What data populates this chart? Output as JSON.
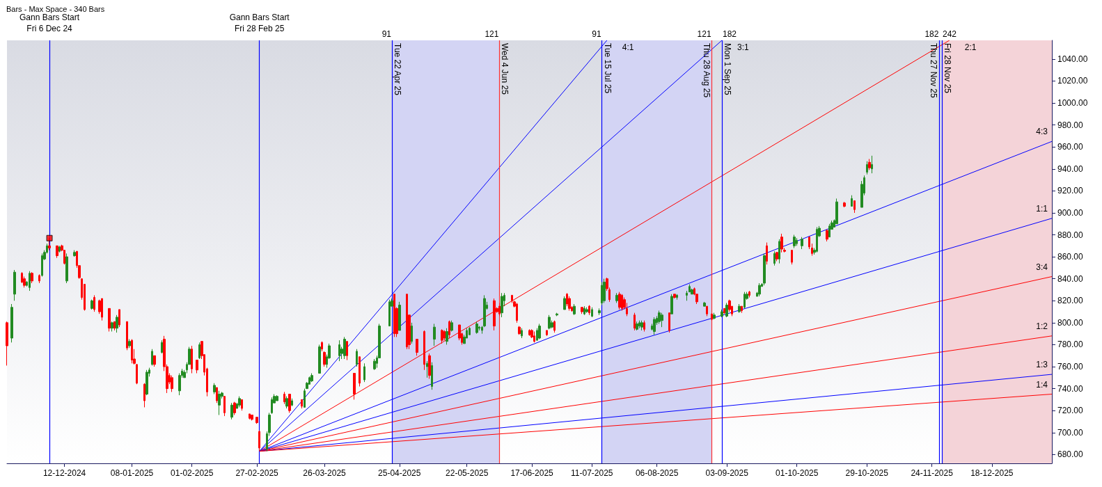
{
  "chart_data": {
    "type": "candlestick",
    "title": "Bars - Max Space - 340 Bars",
    "xlim": [
      "2024-11-19",
      "2026-01-11"
    ],
    "xticks": [
      {
        "value": "2024-12-12",
        "label": "12-12-2024"
      },
      {
        "value": "2025-01-08",
        "label": "08-01-2025"
      },
      {
        "value": "2025-02-01",
        "label": "01-02-2025"
      },
      {
        "value": "2025-02-27",
        "label": "27-02-2025"
      },
      {
        "value": "2025-03-26",
        "label": "26-03-2025"
      },
      {
        "value": "2025-04-25",
        "label": "25-04-2025"
      },
      {
        "value": "2025-05-22",
        "label": "22-05-2025"
      },
      {
        "value": "2025-06-17",
        "label": "17-06-2025"
      },
      {
        "value": "2025-07-11",
        "label": "11-07-2025"
      },
      {
        "value": "2025-08-06",
        "label": "06-08-2025"
      },
      {
        "value": "2025-09-03",
        "label": "03-09-2025"
      },
      {
        "value": "2025-10-01",
        "label": "01-10-2025"
      },
      {
        "value": "2025-10-29",
        "label": "29-10-2025"
      },
      {
        "value": "2025-11-24",
        "label": "24-11-2025"
      },
      {
        "value": "2025-12-18",
        "label": "18-12-2025"
      }
    ],
    "ylim": [
      672,
      1057
    ],
    "yticks": [
      {
        "value": 680,
        "label": "680.00"
      },
      {
        "value": 700,
        "label": "700.00"
      },
      {
        "value": 720,
        "label": "720.00"
      },
      {
        "value": 740,
        "label": "740.00"
      },
      {
        "value": 760,
        "label": "760.00"
      },
      {
        "value": 780,
        "label": "780.00"
      },
      {
        "value": 800,
        "label": "800.00"
      },
      {
        "value": 820,
        "label": "820.00"
      },
      {
        "value": 840,
        "label": "840.00"
      },
      {
        "value": 860,
        "label": "860.00"
      },
      {
        "value": 880,
        "label": "880.00"
      },
      {
        "value": 900,
        "label": "900.00"
      },
      {
        "value": 920,
        "label": "920.00"
      },
      {
        "value": 940,
        "label": "940.00"
      },
      {
        "value": 960,
        "label": "960.00"
      },
      {
        "value": 980,
        "label": "980.00"
      },
      {
        "value": 1000,
        "label": "1000.00"
      },
      {
        "value": 1020,
        "label": "1020.00"
      },
      {
        "value": 1040,
        "label": "1040.00"
      }
    ],
    "series": [
      {
        "type": "candlestick",
        "x": [
          "2024-11-19",
          "2024-11-21",
          "2024-11-22",
          "2024-11-25",
          "2024-11-26",
          "2024-11-27",
          "2024-11-28",
          "2024-11-29",
          "2024-12-02",
          "2024-12-03",
          "2024-12-04",
          "2024-12-05",
          "2024-12-06",
          "2024-12-09",
          "2024-12-10",
          "2024-12-11",
          "2024-12-12",
          "2024-12-13",
          "2024-12-16",
          "2024-12-17",
          "2024-12-18",
          "2024-12-19",
          "2024-12-20",
          "2024-12-23",
          "2024-12-24",
          "2024-12-26",
          "2024-12-27",
          "2024-12-30",
          "2024-12-31",
          "2025-01-01",
          "2025-01-02",
          "2025-01-03",
          "2025-01-06",
          "2025-01-07",
          "2025-01-08",
          "2025-01-09",
          "2025-01-10",
          "2025-01-13",
          "2025-01-14",
          "2025-01-15",
          "2025-01-16",
          "2025-01-17",
          "2025-01-20",
          "2025-01-21",
          "2025-01-22",
          "2025-01-23",
          "2025-01-24",
          "2025-01-27",
          "2025-01-28",
          "2025-01-29",
          "2025-01-30",
          "2025-01-31",
          "2025-02-01",
          "2025-02-03",
          "2025-02-04",
          "2025-02-05",
          "2025-02-06",
          "2025-02-07",
          "2025-02-10",
          "2025-02-11",
          "2025-02-12",
          "2025-02-13",
          "2025-02-14",
          "2025-02-17",
          "2025-02-18",
          "2025-02-19",
          "2025-02-20",
          "2025-02-21",
          "2025-02-24",
          "2025-02-25",
          "2025-02-27",
          "2025-02-28",
          "2025-03-03",
          "2025-03-04",
          "2025-03-05",
          "2025-03-06",
          "2025-03-07",
          "2025-03-10",
          "2025-03-11",
          "2025-03-12",
          "2025-03-13",
          "2025-03-17",
          "2025-03-18",
          "2025-03-19",
          "2025-03-20",
          "2025-03-21",
          "2025-03-24",
          "2025-03-25",
          "2025-03-26",
          "2025-03-27",
          "2025-03-28",
          "2025-04-01",
          "2025-04-02",
          "2025-04-03",
          "2025-04-04",
          "2025-04-07",
          "2025-04-08",
          "2025-04-09",
          "2025-04-11",
          "2025-04-15",
          "2025-04-16",
          "2025-04-17",
          "2025-04-21",
          "2025-04-22",
          "2025-04-23",
          "2025-04-24",
          "2025-04-25",
          "2025-04-28",
          "2025-04-29",
          "2025-04-30",
          "2025-05-02",
          "2025-05-05",
          "2025-05-06",
          "2025-05-07",
          "2025-05-08",
          "2025-05-09",
          "2025-05-12",
          "2025-05-13",
          "2025-05-14",
          "2025-05-15",
          "2025-05-16",
          "2025-05-19",
          "2025-05-20",
          "2025-05-21",
          "2025-05-22",
          "2025-05-23",
          "2025-05-26",
          "2025-05-27",
          "2025-05-28",
          "2025-05-29",
          "2025-05-30",
          "2025-06-02",
          "2025-06-03",
          "2025-06-04",
          "2025-06-05",
          "2025-06-06",
          "2025-06-09",
          "2025-06-10",
          "2025-06-11",
          "2025-06-12",
          "2025-06-13",
          "2025-06-16",
          "2025-06-17",
          "2025-06-18",
          "2025-06-19",
          "2025-06-20",
          "2025-06-23",
          "2025-06-24",
          "2025-06-25",
          "2025-06-26",
          "2025-06-27",
          "2025-06-30",
          "2025-07-01",
          "2025-07-02",
          "2025-07-03",
          "2025-07-04",
          "2025-07-07",
          "2025-07-08",
          "2025-07-09",
          "2025-07-10",
          "2025-07-11",
          "2025-07-14",
          "2025-07-15",
          "2025-07-16",
          "2025-07-17",
          "2025-07-18",
          "2025-07-21",
          "2025-07-22",
          "2025-07-23",
          "2025-07-24",
          "2025-07-25",
          "2025-07-28",
          "2025-07-29",
          "2025-07-30",
          "2025-07-31",
          "2025-08-01",
          "2025-08-04",
          "2025-08-05",
          "2025-08-06",
          "2025-08-07",
          "2025-08-08",
          "2025-08-11",
          "2025-08-12",
          "2025-08-13",
          "2025-08-14",
          "2025-08-18",
          "2025-08-19",
          "2025-08-20",
          "2025-08-21",
          "2025-08-22",
          "2025-08-25",
          "2025-08-26",
          "2025-08-28",
          "2025-08-29",
          "2025-09-01",
          "2025-09-02",
          "2025-09-03",
          "2025-09-04",
          "2025-09-05",
          "2025-09-08",
          "2025-09-09",
          "2025-09-10",
          "2025-09-11",
          "2025-09-12",
          "2025-09-15",
          "2025-09-16",
          "2025-09-17",
          "2025-09-18",
          "2025-09-19",
          "2025-09-22",
          "2025-09-23",
          "2025-09-24",
          "2025-09-25",
          "2025-09-26",
          "2025-09-29",
          "2025-09-30",
          "2025-10-01",
          "2025-10-03",
          "2025-10-06",
          "2025-10-07",
          "2025-10-08",
          "2025-10-09",
          "2025-10-10",
          "2025-10-13",
          "2025-10-14",
          "2025-10-15",
          "2025-10-16",
          "2025-10-17",
          "2025-10-20",
          "2025-10-23",
          "2025-10-24",
          "2025-10-27",
          "2025-10-28",
          "2025-10-29",
          "2025-10-30",
          "2025-10-31"
        ],
        "ohlc": [
          [
            800,
            801,
            761,
            779
          ],
          [
            786,
            817,
            782,
            814
          ],
          [
            826,
            848,
            820,
            846
          ],
          [
            845,
            846,
            836,
            837
          ],
          [
            840,
            842,
            832,
            834
          ],
          [
            834,
            838,
            833,
            837
          ],
          [
            832,
            847,
            829,
            845
          ],
          [
            845,
            846,
            836,
            838
          ],
          [
            843,
            844,
            836,
            838
          ],
          [
            843,
            863,
            842,
            861
          ],
          [
            858,
            866,
            857,
            864
          ],
          [
            864,
            872,
            863,
            870
          ],
          [
            870,
            877,
            866,
            868
          ],
          [
            870,
            870,
            859,
            861
          ],
          [
            865,
            870,
            864,
            869
          ],
          [
            870,
            871,
            865,
            866
          ],
          [
            866,
            866,
            853,
            854
          ],
          [
            838,
            863,
            836,
            860
          ],
          [
            861,
            866,
            860,
            864
          ],
          [
            865,
            865,
            850,
            852
          ],
          [
            852,
            852,
            840,
            841
          ],
          [
            840,
            840,
            821,
            823
          ],
          [
            835,
            835,
            811,
            812
          ],
          [
            813,
            821,
            812,
            820
          ],
          [
            823,
            825,
            810,
            812
          ],
          [
            820,
            821,
            808,
            810
          ],
          [
            822,
            822,
            802,
            805
          ],
          [
            813,
            813,
            792,
            795
          ],
          [
            795,
            801,
            792,
            800
          ],
          [
            801,
            801,
            793,
            795
          ],
          [
            795,
            807,
            791,
            805
          ],
          [
            812,
            812,
            796,
            798
          ],
          [
            801,
            801,
            775,
            777
          ],
          [
            779,
            785,
            777,
            783
          ],
          [
            784,
            785,
            763,
            766
          ],
          [
            767,
            776,
            762,
            763
          ],
          [
            762,
            762,
            744,
            745
          ],
          [
            744,
            745,
            723,
            729
          ],
          [
            735,
            757,
            734,
            755
          ],
          [
            754,
            759,
            751,
            757
          ],
          [
            762,
            776,
            761,
            774
          ],
          [
            770,
            770,
            760,
            762
          ],
          [
            773,
            784,
            772,
            782
          ],
          [
            785,
            788,
            756,
            760
          ],
          [
            760,
            762,
            736,
            740
          ],
          [
            752,
            754,
            744,
            746
          ],
          [
            750,
            752,
            737,
            740
          ],
          [
            738,
            754,
            734,
            752
          ],
          [
            752,
            758,
            750,
            756
          ],
          [
            750,
            757,
            750,
            755
          ],
          [
            757,
            764,
            754,
            762
          ],
          [
            762,
            778,
            762,
            776
          ],
          [
            776,
            779,
            754,
            758
          ],
          [
            766,
            766,
            754,
            757
          ],
          [
            768,
            782,
            767,
            780
          ],
          [
            783,
            783,
            767,
            770
          ],
          [
            771,
            771,
            752,
            755
          ],
          [
            758,
            759,
            733,
            737
          ],
          [
            737,
            745,
            735,
            743
          ],
          [
            741,
            741,
            727,
            729
          ],
          [
            725,
            738,
            716,
            735
          ],
          [
            733,
            737,
            731,
            736
          ],
          [
            733,
            733,
            715,
            718
          ],
          [
            714,
            727,
            712,
            725
          ],
          [
            727,
            728,
            716,
            718
          ],
          [
            722,
            727,
            722,
            726
          ],
          [
            725,
            733,
            723,
            731
          ],
          [
            730,
            730,
            720,
            722
          ],
          [
            717,
            717,
            712,
            713
          ],
          [
            716,
            716,
            711,
            712
          ],
          [
            714,
            714,
            708,
            709
          ],
          [
            701,
            702,
            683,
            686
          ],
          [
            685,
            701,
            683,
            699
          ],
          [
            700,
            718,
            697,
            716
          ],
          [
            718,
            732,
            717,
            730
          ],
          [
            727,
            735,
            727,
            733
          ],
          [
            729,
            734,
            729,
            733
          ],
          [
            735,
            737,
            726,
            728
          ],
          [
            724,
            733,
            722,
            731
          ],
          [
            735,
            735,
            718,
            720
          ],
          [
            725,
            731,
            724,
            729
          ],
          [
            730,
            730,
            722,
            724
          ],
          [
            723,
            740,
            723,
            738
          ],
          [
            740,
            746,
            740,
            745
          ],
          [
            744,
            751,
            744,
            750
          ],
          [
            747,
            754,
            746,
            752
          ],
          [
            754,
            780,
            754,
            778
          ],
          [
            782,
            783,
            774,
            776
          ],
          [
            773,
            774,
            760,
            762
          ],
          [
            762,
            771,
            759,
            769
          ],
          [
            768,
            781,
            767,
            779
          ],
          [
            770,
            784,
            765,
            780
          ],
          [
            772,
            778,
            767,
            776
          ],
          [
            770,
            787,
            767,
            785
          ],
          [
            783,
            783,
            766,
            770
          ],
          [
            754,
            754,
            730,
            735
          ],
          [
            762,
            776,
            760,
            774
          ],
          [
            769,
            769,
            742,
            745
          ],
          [
            748,
            763,
            746,
            760
          ],
          [
            758,
            767,
            757,
            765
          ],
          [
            763,
            770,
            759,
            768
          ],
          [
            768,
            799,
            768,
            797
          ],
          [
            797,
            821,
            797,
            819
          ],
          [
            815,
            822,
            815,
            820
          ],
          [
            826,
            826,
            787,
            790
          ],
          [
            813,
            814,
            787,
            790
          ],
          [
            793,
            819,
            793,
            816
          ],
          [
            826,
            826,
            776,
            778
          ],
          [
            807,
            807,
            776,
            780
          ],
          [
            783,
            800,
            781,
            797
          ],
          [
            785,
            785,
            770,
            773
          ],
          [
            792,
            793,
            757,
            762
          ],
          [
            760,
            765,
            750,
            763
          ],
          [
            770,
            772,
            749,
            752
          ],
          [
            742,
            764,
            739,
            761
          ],
          [
            785,
            799,
            779,
            796
          ],
          [
            793,
            794,
            781,
            784
          ],
          [
            792,
            793,
            784,
            786
          ],
          [
            783,
            795,
            780,
            792
          ],
          [
            801,
            802,
            786,
            789
          ],
          [
            793,
            802,
            792,
            800
          ],
          [
            798,
            798,
            784,
            786
          ],
          [
            790,
            791,
            780,
            782
          ],
          [
            781,
            789,
            781,
            787
          ],
          [
            786,
            795,
            786,
            793
          ],
          [
            789,
            796,
            789,
            795
          ],
          [
            791,
            801,
            790,
            799
          ],
          [
            795,
            797,
            793,
            796
          ],
          [
            793,
            797,
            790,
            796
          ],
          [
            797,
            825,
            796,
            822
          ],
          [
            813,
            819,
            812,
            816
          ],
          [
            820,
            822,
            793,
            797
          ],
          [
            813,
            814,
            809,
            810
          ],
          [
            815,
            818,
            806,
            808
          ],
          [
            809,
            827,
            805,
            824
          ],
          [
            820,
            827,
            815,
            825
          ],
          [
            825,
            825,
            818,
            820
          ],
          [
            819,
            820,
            814,
            815
          ],
          [
            817,
            818,
            800,
            802
          ],
          [
            796,
            797,
            789,
            790
          ],
          [
            788,
            795,
            786,
            793
          ],
          [
            793,
            794,
            788,
            789
          ],
          [
            793,
            794,
            786,
            787
          ],
          [
            788,
            792,
            782,
            783
          ],
          [
            784,
            795,
            784,
            793
          ],
          [
            786,
            799,
            785,
            797
          ],
          [
            793,
            793,
            788,
            789
          ],
          [
            795,
            807,
            794,
            805
          ],
          [
            796,
            802,
            795,
            800
          ],
          [
            801,
            802,
            791,
            793
          ],
          [
            807,
            809,
            806,
            808
          ],
          [
            812,
            824,
            812,
            822
          ],
          [
            826,
            827,
            815,
            817
          ],
          [
            822,
            824,
            811,
            813
          ],
          [
            814,
            815,
            810,
            811
          ],
          [
            808,
            817,
            807,
            815
          ],
          [
            814,
            814,
            808,
            810
          ],
          [
            808,
            815,
            807,
            813
          ],
          [
            810,
            814,
            809,
            812
          ],
          [
            815,
            816,
            807,
            809
          ],
          [
            806,
            814,
            805,
            812
          ],
          [
            809,
            813,
            807,
            811
          ],
          [
            818,
            837,
            816,
            834
          ],
          [
            820,
            840,
            818,
            837
          ],
          [
            840,
            841,
            829,
            831
          ],
          [
            830,
            832,
            819,
            821
          ],
          [
            820,
            827,
            818,
            825
          ],
          [
            826,
            828,
            812,
            814
          ],
          [
            825,
            826,
            811,
            813
          ],
          [
            821,
            823,
            812,
            814
          ],
          [
            813,
            818,
            806,
            808
          ],
          [
            807,
            809,
            793,
            795
          ],
          [
            794,
            801,
            793,
            799
          ],
          [
            797,
            802,
            795,
            800
          ],
          [
            796,
            802,
            793,
            800
          ],
          [
            800,
            802,
            792,
            794
          ],
          [
            794,
            799,
            793,
            797
          ],
          [
            792,
            805,
            789,
            803
          ],
          [
            800,
            806,
            798,
            804
          ],
          [
            801,
            811,
            799,
            809
          ],
          [
            802,
            809,
            796,
            807
          ],
          [
            809,
            809,
            791,
            793
          ],
          [
            808,
            826,
            808,
            824
          ],
          [
            826,
            826,
            822,
            823
          ],
          [
            823,
            826,
            821,
            825
          ],
          [
            825,
            829,
            820,
            827
          ],
          [
            828,
            835,
            828,
            833
          ],
          [
            826,
            831,
            826,
            830
          ],
          [
            831,
            832,
            825,
            826
          ],
          [
            826,
            826,
            817,
            819
          ],
          [
            815,
            819,
            815,
            818
          ],
          [
            815,
            815,
            806,
            808
          ],
          [
            808,
            808,
            802,
            803
          ],
          [
            804,
            809,
            803,
            807
          ],
          [
            806,
            812,
            805,
            810
          ],
          [
            813,
            813,
            808,
            809
          ],
          [
            806,
            818,
            805,
            816
          ],
          [
            820,
            821,
            810,
            812
          ],
          [
            815,
            815,
            806,
            808
          ],
          [
            810,
            817,
            809,
            815
          ],
          [
            815,
            815,
            809,
            811
          ],
          [
            814,
            828,
            813,
            826
          ],
          [
            822,
            828,
            821,
            826
          ],
          [
            828,
            829,
            823,
            825
          ],
          [
            824,
            828,
            824,
            827
          ],
          [
            826,
            836,
            824,
            834
          ],
          [
            833,
            836,
            833,
            835
          ],
          [
            836,
            863,
            834,
            861
          ],
          [
            870,
            873,
            853,
            856
          ],
          [
            854,
            865,
            852,
            863
          ],
          [
            864,
            864,
            856,
            858
          ],
          [
            858,
            876,
            854,
            874
          ],
          [
            878,
            881,
            864,
            867
          ],
          [
            866,
            868,
            864,
            865
          ],
          [
            866,
            866,
            853,
            855
          ],
          [
            870,
            880,
            868,
            878
          ],
          [
            872,
            877,
            870,
            875
          ],
          [
            870,
            878,
            867,
            876
          ],
          [
            878,
            878,
            867,
            869
          ],
          [
            868,
            872,
            861,
            863
          ],
          [
            864,
            868,
            862,
            866
          ],
          [
            865,
            887,
            864,
            885
          ],
          [
            879,
            888,
            878,
            886
          ],
          [
            884,
            885,
            874,
            876
          ],
          [
            878,
            890,
            878,
            888
          ],
          [
            885,
            893,
            885,
            891
          ],
          [
            887,
            894,
            887,
            893
          ],
          [
            890,
            913,
            890,
            910
          ],
          [
            909,
            910,
            905,
            906
          ],
          [
            906,
            916,
            906,
            913
          ],
          [
            911,
            911,
            900,
            903
          ],
          [
            905,
            929,
            905,
            926
          ],
          [
            918,
            934,
            916,
            932
          ],
          [
            937,
            947,
            935,
            944
          ],
          [
            946,
            949,
            939,
            941
          ],
          [
            940,
            952,
            936,
            944
          ]
        ],
        "colors": [
          "#ff0000",
          "#228b22",
          "#228b22",
          "#ff0000",
          "#ff0000",
          "#228b22",
          "#228b22",
          "#ff0000",
          "#ff0000",
          "#228b22",
          "#228b22",
          "#228b22",
          "#ff0000",
          "#ff0000",
          "#228b22",
          "#ff0000",
          "#ff0000",
          "#228b22",
          "#228b22",
          "#ff0000",
          "#ff0000",
          "#ff0000",
          "#ff0000",
          "#228b22",
          "#ff0000",
          "#ff0000",
          "#ff0000",
          "#ff0000",
          "#228b22",
          "#ff0000",
          "#228b22",
          "#ff0000",
          "#ff0000",
          "#228b22",
          "#ff0000",
          "#ff0000",
          "#ff0000",
          "#ff0000",
          "#228b22",
          "#228b22",
          "#228b22",
          "#ff0000",
          "#228b22",
          "#ff0000",
          "#ff0000",
          "#ff0000",
          "#ff0000",
          "#228b22",
          "#228b22",
          "#228b22",
          "#228b22",
          "#228b22",
          "#ff0000",
          "#ff0000",
          "#228b22",
          "#ff0000",
          "#ff0000",
          "#ff0000",
          "#228b22",
          "#ff0000",
          "#228b22",
          "#228b22",
          "#ff0000",
          "#228b22",
          "#ff0000",
          "#228b22",
          "#228b22",
          "#ff0000",
          "#ff0000",
          "#ff0000",
          "#ff0000",
          "#ff0000",
          "#228b22",
          "#228b22",
          "#228b22",
          "#228b22",
          "#228b22",
          "#ff0000",
          "#228b22",
          "#ff0000",
          "#228b22",
          "#ff0000",
          "#228b22",
          "#228b22",
          "#228b22",
          "#228b22",
          "#228b22",
          "#ff0000",
          "#ff0000",
          "#228b22",
          "#228b22",
          "#228b22",
          "#228b22",
          "#228b22",
          "#ff0000",
          "#ff0000",
          "#228b22",
          "#ff0000",
          "#228b22",
          "#228b22",
          "#228b22",
          "#228b22",
          "#228b22",
          "#228b22",
          "#ff0000",
          "#ff0000",
          "#228b22",
          "#ff0000",
          "#ff0000",
          "#228b22",
          "#ff0000",
          "#ff0000",
          "#228b22",
          "#ff0000",
          "#228b22",
          "#228b22",
          "#ff0000",
          "#ff0000",
          "#228b22",
          "#ff0000",
          "#228b22",
          "#ff0000",
          "#ff0000",
          "#228b22",
          "#228b22",
          "#228b22",
          "#228b22",
          "#228b22",
          "#228b22",
          "#228b22",
          "#228b22",
          "#ff0000",
          "#ff0000",
          "#ff0000",
          "#228b22",
          "#228b22",
          "#ff0000",
          "#ff0000",
          "#ff0000",
          "#ff0000",
          "#228b22",
          "#ff0000",
          "#ff0000",
          "#ff0000",
          "#228b22",
          "#228b22",
          "#ff0000",
          "#228b22",
          "#228b22",
          "#ff0000",
          "#228b22",
          "#228b22",
          "#ff0000",
          "#ff0000",
          "#ff0000",
          "#228b22",
          "#ff0000",
          "#228b22",
          "#228b22",
          "#ff0000",
          "#228b22",
          "#228b22",
          "#228b22",
          "#228b22",
          "#ff0000",
          "#ff0000",
          "#228b22",
          "#ff0000",
          "#ff0000",
          "#ff0000",
          "#ff0000",
          "#ff0000",
          "#228b22",
          "#228b22",
          "#228b22",
          "#ff0000",
          "#228b22",
          "#228b22",
          "#228b22",
          "#228b22",
          "#228b22",
          "#ff0000",
          "#228b22",
          "#ff0000",
          "#228b22",
          "#228b22",
          "#228b22",
          "#228b22",
          "#ff0000",
          "#ff0000",
          "#228b22",
          "#ff0000",
          "#ff0000",
          "#228b22",
          "#228b22",
          "#ff0000",
          "#228b22",
          "#ff0000",
          "#ff0000",
          "#228b22",
          "#ff0000",
          "#228b22",
          "#228b22",
          "#ff0000",
          "#228b22",
          "#228b22",
          "#228b22",
          "#228b22",
          "#ff0000",
          "#228b22",
          "#ff0000",
          "#228b22",
          "#ff0000",
          "#ff0000",
          "#ff0000",
          "#228b22",
          "#228b22",
          "#228b22",
          "#ff0000",
          "#ff0000",
          "#228b22",
          "#228b22",
          "#228b22",
          "#ff0000",
          "#228b22",
          "#228b22",
          "#228b22",
          "#228b22",
          "#ff0000",
          "#228b22",
          "#ff0000",
          "#228b22",
          "#228b22",
          "#228b22",
          "#ff0000",
          "#228b22"
        ]
      },
      {
        "type": "line",
        "name": "4:1",
        "color": "#0000ff",
        "x": [
          "2025-02-28",
          "2025-07-17"
        ],
        "values": [
          683,
          1057
        ]
      },
      {
        "type": "line",
        "name": "3:1",
        "color": "#0000ff",
        "x": [
          "2025-02-28",
          "2025-09-01"
        ],
        "values": [
          683,
          1057
        ]
      },
      {
        "type": "line",
        "name": "2:1",
        "color": "#ff0000",
        "x": [
          "2025-02-28",
          "2025-12-01"
        ],
        "values": [
          683,
          1057
        ]
      },
      {
        "type": "line",
        "name": "4:3",
        "color": "#0000ff",
        "x": [
          "2025-02-28",
          "2026-01-11"
        ],
        "values": [
          683,
          965
        ]
      },
      {
        "type": "line",
        "name": "1:1",
        "color": "#0000ff",
        "x": [
          "2025-02-28",
          "2026-01-11"
        ],
        "values": [
          683,
          895
        ]
      },
      {
        "type": "line",
        "name": "3:4",
        "color": "#ff0000",
        "x": [
          "2025-02-28",
          "2026-01-11"
        ],
        "values": [
          683,
          842
        ]
      },
      {
        "type": "line",
        "name": "1:2",
        "color": "#ff0000",
        "x": [
          "2025-02-28",
          "2026-01-11"
        ],
        "values": [
          683,
          788
        ]
      },
      {
        "type": "line",
        "name": "1:3",
        "color": "#0000ff",
        "x": [
          "2025-02-28",
          "2026-01-11"
        ],
        "values": [
          683,
          753
        ]
      },
      {
        "type": "line",
        "name": "1:4",
        "color": "#ff0000",
        "x": [
          "2025-02-28",
          "2026-01-11"
        ],
        "values": [
          683,
          735
        ]
      },
      {
        "type": "scatter",
        "marker": "square",
        "color": "#ff0000",
        "x": [
          "2024-12-06"
        ],
        "values": [
          877
        ]
      }
    ],
    "ref_lines": [
      {
        "axis": "x",
        "value": "2024-12-06",
        "label": "Gann Bars Start\nFri 6 Dec 24",
        "color": "#0000ff"
      },
      {
        "axis": "x",
        "value": "2025-02-28",
        "label": "Gann Bars Start\nFri 28 Feb 25",
        "color": "#0000ff"
      },
      {
        "axis": "x",
        "value": "2025-04-22",
        "label": "Tue 22 Apr 25",
        "color": "#0000ff"
      },
      {
        "axis": "x",
        "value": "2025-06-04",
        "label": "Wed 4 Jun 25",
        "color": "#ff3030"
      },
      {
        "axis": "x",
        "value": "2025-07-15",
        "label": "Tue 15 Jul 25",
        "color": "#0000ff"
      },
      {
        "axis": "x",
        "value": "2025-08-28",
        "label": "Thu 28 Aug 25",
        "color": "#ff3030"
      },
      {
        "axis": "x",
        "value": "2025-09-01",
        "label": "Mon 1 Sep 25",
        "color": "#0000ff"
      },
      {
        "axis": "x",
        "value": "2025-11-27",
        "label": "Thu 27 Nov 25",
        "color": "#0000ff"
      },
      {
        "axis": "x",
        "value": "2025-11-28",
        "label": "Fri 28 Nov 25",
        "color": "#0000ff"
      }
    ],
    "bands": [
      {
        "axis": "x",
        "from": "2025-04-22",
        "to": "2025-06-04",
        "color": "#d3d4f4"
      },
      {
        "axis": "x",
        "from": "2025-07-15",
        "to": "2025-08-28",
        "color": "#d3d4f4"
      },
      {
        "axis": "x",
        "from": "2025-11-28",
        "to": "2026-01-11",
        "color": "#f4d3d8"
      }
    ],
    "annotations": [
      "91",
      "121",
      "91",
      "121",
      "182",
      "182",
      "242"
    ]
  }
}
